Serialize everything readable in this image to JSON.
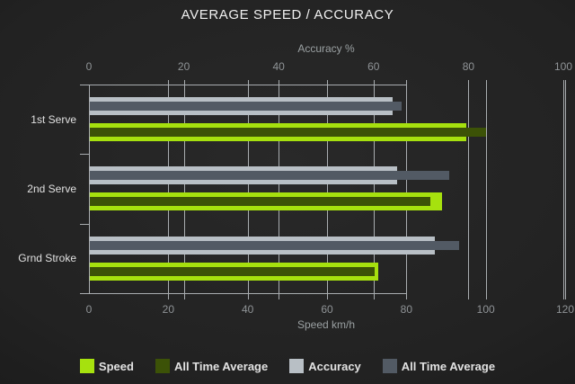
{
  "title": "AVERAGE SPEED / ACCURACY",
  "chart_data": {
    "type": "bar",
    "orientation": "horizontal",
    "title": "AVERAGE SPEED / ACCURACY",
    "categories": [
      "1st Serve",
      "2nd Serve",
      "Grnd Stroke"
    ],
    "axes": {
      "top": {
        "label": "Accuracy %",
        "min": 0,
        "max": 100,
        "ticks": [
          0,
          20,
          40,
          60,
          80,
          100
        ]
      },
      "bottom": {
        "label": "Speed km/h",
        "min": 0,
        "max": 120,
        "ticks": [
          0,
          20,
          40,
          60,
          80,
          100,
          120
        ]
      }
    },
    "series": [
      {
        "name": "Speed",
        "axis": "bottom",
        "role": "current",
        "color": "#a6e10e",
        "values": [
          95,
          89,
          73
        ]
      },
      {
        "name": "All Time Average",
        "axis": "bottom",
        "role": "average",
        "color": "#3c5207",
        "values": [
          100,
          86,
          72
        ]
      },
      {
        "name": "Accuracy",
        "axis": "top",
        "role": "current",
        "color": "#b8bfc5",
        "values": [
          64,
          65,
          73
        ]
      },
      {
        "name": "All Time Average",
        "axis": "top",
        "role": "average",
        "color": "#525a64",
        "values": [
          66,
          76,
          78
        ]
      }
    ],
    "legend": [
      {
        "label": "Speed",
        "color": "#a6e10e"
      },
      {
        "label": "All Time Average",
        "color": "#3c5207"
      },
      {
        "label": "Accuracy",
        "color": "#b8bfc5"
      },
      {
        "label": "All Time Average",
        "color": "#525a64"
      }
    ],
    "grid": true,
    "legend_position": "bottom"
  },
  "colors": {
    "background_center": "#292929",
    "background_edge": "#0e0e0e",
    "axis_line": "#a9adb0",
    "gridline": "#a9adb0",
    "tick_label": "#8f9396",
    "axis_title": "#9aa0a2",
    "category_label": "#e0e0e0",
    "title_text": "#f0f0f0",
    "legend_text": "#e2e2e2"
  }
}
